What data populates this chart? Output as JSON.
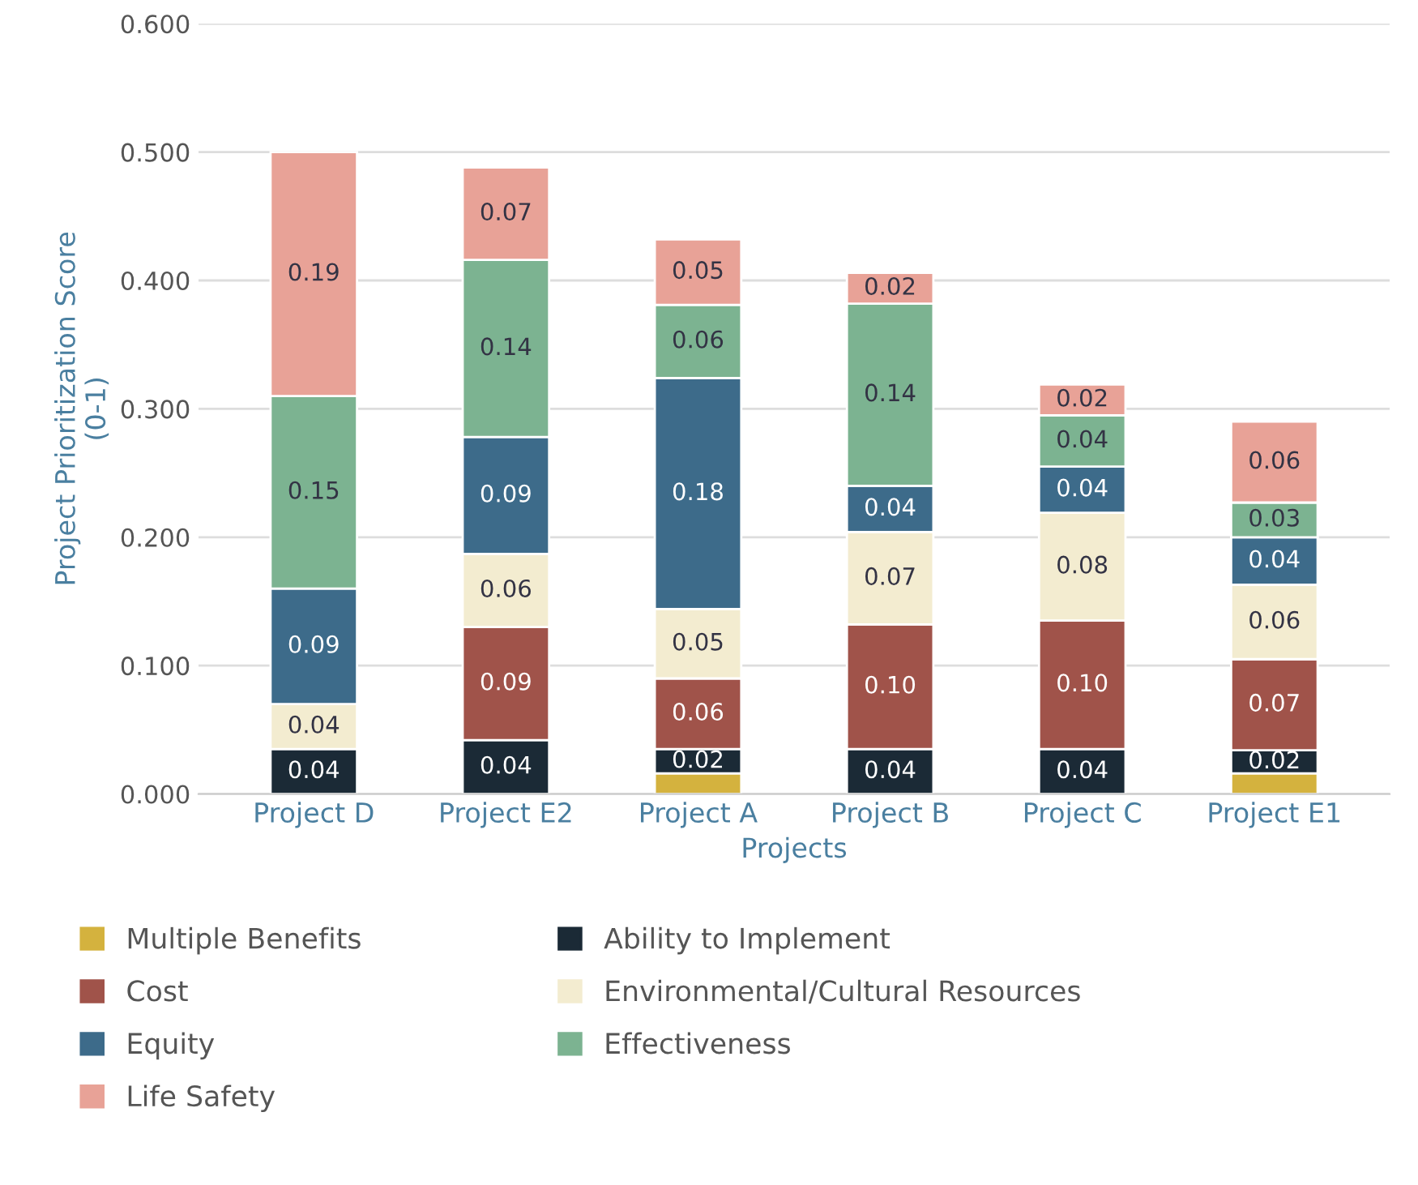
{
  "chart_data": {
    "type": "bar",
    "stacked": true,
    "xlabel": "Projects",
    "ylabel": "Project Prioritization Score\n(0-1)",
    "categories": [
      "Project D",
      "Project E2",
      "Project A",
      "Project B",
      "Project C",
      "Project E1"
    ],
    "ylim": [
      0,
      0.6
    ],
    "yticks": [
      {
        "value": 0,
        "label": "0.000"
      },
      {
        "value": 0.1,
        "label": "0.100"
      },
      {
        "value": 0.2,
        "label": "0.200"
      },
      {
        "value": 0.3,
        "label": "0.300"
      },
      {
        "value": 0.4,
        "label": "0.400"
      },
      {
        "value": 0.5,
        "label": "0.500"
      },
      {
        "value": 0.6,
        "label": "0.600"
      }
    ],
    "grid": "y",
    "legend": "bottom",
    "series": [
      {
        "name": "Multiple Benefits",
        "color": "#d4b23e",
        "values": [
          null,
          null,
          0.016,
          null,
          null,
          0.016
        ],
        "value_labels": [
          null,
          null,
          null,
          null,
          null,
          null
        ]
      },
      {
        "name": "Ability to Implement",
        "color": "#1b2a36",
        "values": [
          0.035,
          0.042,
          0.019,
          0.035,
          0.035,
          0.018
        ],
        "value_labels": [
          "0.04",
          "0.04",
          "0.02",
          "0.04",
          "0.04",
          "0.02"
        ]
      },
      {
        "name": "Cost",
        "color": "#a0534a",
        "values": [
          null,
          0.088,
          0.055,
          0.097,
          0.1,
          0.071
        ],
        "value_labels": [
          null,
          "0.09",
          "0.06",
          "0.10",
          "0.10",
          "0.07"
        ]
      },
      {
        "name": "Environmental/Cultural Resources",
        "color": "#f3ecd0",
        "values": [
          0.035,
          0.057,
          0.054,
          0.072,
          0.084,
          0.058
        ],
        "value_labels": [
          "0.04",
          "0.06",
          "0.05",
          "0.07",
          "0.08",
          "0.06"
        ]
      },
      {
        "name": "Equity",
        "color": "#3d6b8a",
        "values": [
          0.09,
          0.091,
          0.18,
          0.036,
          0.036,
          0.037
        ],
        "value_labels": [
          "0.09",
          "0.09",
          "0.18",
          "0.04",
          "0.04",
          "0.04"
        ]
      },
      {
        "name": "Effectiveness",
        "color": "#7cb391",
        "values": [
          0.15,
          0.138,
          0.057,
          0.142,
          0.04,
          0.027
        ],
        "value_labels": [
          "0.15",
          "0.14",
          "0.06",
          "0.14",
          "0.04",
          "0.03"
        ]
      },
      {
        "name": "Life Safety",
        "color": "#e8a297",
        "values": [
          0.19,
          0.072,
          0.051,
          0.024,
          0.024,
          0.063
        ],
        "value_labels": [
          "0.19",
          "0.07",
          "0.05",
          "0.02",
          "0.02",
          "0.06"
        ]
      }
    ]
  }
}
